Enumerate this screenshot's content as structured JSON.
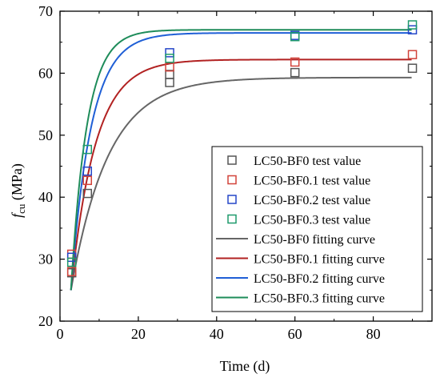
{
  "chart_data": {
    "type": "scatter",
    "title": "",
    "xlabel": "Time (d)",
    "ylabel_main": "f",
    "ylabel_sub": "cu",
    "ylabel_unit": " (MPa)",
    "xlim": [
      0,
      95
    ],
    "ylim": [
      20,
      70
    ],
    "xticks": [
      0,
      20,
      40,
      60,
      80
    ],
    "yticks": [
      20,
      30,
      40,
      50,
      60,
      70
    ],
    "grid": false,
    "legend_position": "bottom-right",
    "x": [
      3,
      7,
      28,
      60,
      90
    ],
    "test_series": [
      {
        "name": "LC50-BF0 test value",
        "color": "#555555",
        "points": [
          [
            3,
            27.8
          ],
          [
            7,
            40.6
          ],
          [
            28,
            58.5
          ],
          [
            28,
            59.8
          ],
          [
            60,
            60.1
          ],
          [
            90,
            60.8
          ]
        ]
      },
      {
        "name": "LC50-BF0.1 test value",
        "color": "#d2433a",
        "points": [
          [
            3,
            28.0
          ],
          [
            3,
            30.8
          ],
          [
            7,
            42.7
          ],
          [
            28,
            61.0
          ],
          [
            60,
            61.8
          ],
          [
            90,
            63.0
          ]
        ]
      },
      {
        "name": "LC50-BF0.2 test value",
        "color": "#2547c8",
        "points": [
          [
            3,
            30.3
          ],
          [
            7,
            44.2
          ],
          [
            28,
            63.3
          ],
          [
            60,
            66.1
          ],
          [
            90,
            67.0
          ]
        ]
      },
      {
        "name": "LC50-BF0.3 test value",
        "color": "#1e9a6c",
        "points": [
          [
            3,
            29.5
          ],
          [
            7,
            47.7
          ],
          [
            28,
            62.4
          ],
          [
            60,
            65.9
          ],
          [
            90,
            67.8
          ]
        ]
      }
    ],
    "fit_series": [
      {
        "name": "LC50-BF0 fitting curve",
        "color": "#666666",
        "asymptote": 59.3,
        "k": 0.105
      },
      {
        "name": "LC50-BF0.1 fitting curve",
        "color": "#b22222",
        "asymptote": 62.2,
        "k": 0.16
      },
      {
        "name": "LC50-BF0.2 fitting curve",
        "color": "#1f5fd6",
        "asymptote": 66.5,
        "k": 0.195
      },
      {
        "name": "LC50-BF0.3 fitting curve",
        "color": "#1e8c5a",
        "asymptote": 67.0,
        "k": 0.245
      }
    ]
  }
}
